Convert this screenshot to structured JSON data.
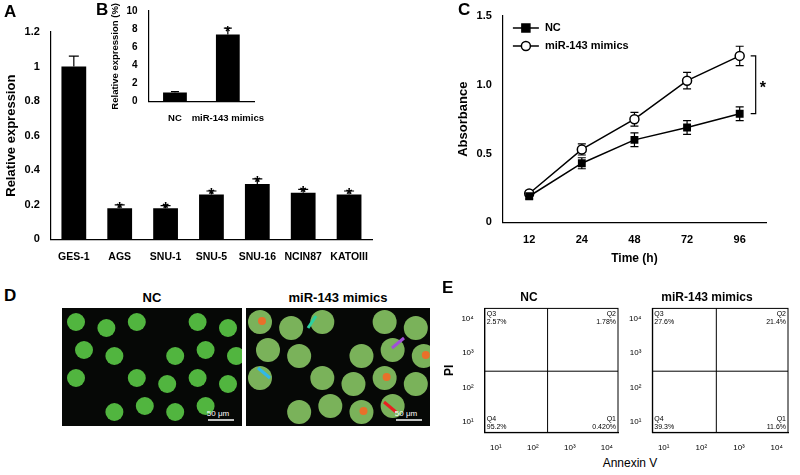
{
  "chart_data": [
    {
      "panel_label": "A",
      "type": "bar",
      "categories": [
        "GES-1",
        "AGS",
        "SNU-1",
        "SNU-5",
        "SNU-16",
        "NCIN87",
        "KATOIII"
      ],
      "values": [
        1.0,
        0.18,
        0.18,
        0.26,
        0.32,
        0.27,
        0.26
      ],
      "errors": [
        0.06,
        0.02,
        0.015,
        0.02,
        0.03,
        0.02,
        0.02
      ],
      "significance": [
        null,
        "*",
        "*",
        "*",
        "*",
        "*",
        "*"
      ],
      "y_label": "Relative expression",
      "ylim": [
        0,
        1.2
      ],
      "yticks": [
        0,
        0.2,
        0.4,
        0.6,
        0.8,
        1,
        1.2
      ],
      "color": "#000000",
      "grid": false
    },
    {
      "panel_label": "B",
      "type": "bar",
      "categories": [
        "NC",
        "miR-143 mimics"
      ],
      "values": [
        1,
        7.4
      ],
      "errors": [
        0.1,
        0.7
      ],
      "significance": [
        null,
        "*"
      ],
      "y_label": "Relative expression (%)",
      "ylim": [
        0,
        10
      ],
      "yticks": [
        0,
        2,
        4,
        6,
        8,
        10
      ],
      "color": "#000000",
      "grid": false
    },
    {
      "panel_label": "C",
      "type": "line",
      "categories": [
        "12",
        "24",
        "48",
        "72",
        "96"
      ],
      "x_label": "Time (h)",
      "y_label": "Absorbance",
      "ylim": [
        0,
        1.5
      ],
      "yticks": [
        0,
        0.5,
        {
          "value": 1,
          "label": "1.0"
        },
        1.5
      ],
      "series": [
        {
          "name": "NC",
          "color": "#000000",
          "marker": "square",
          "values": [
            0.19,
            0.43,
            0.6,
            0.69,
            0.79
          ],
          "errors": [
            0.02,
            0.04,
            0.05,
            0.05,
            0.05
          ]
        },
        {
          "name": "miR-143 mimics",
          "color": "#000000",
          "marker": "open_circle",
          "values": [
            0.21,
            0.53,
            0.75,
            1.03,
            1.21
          ],
          "errors": [
            0.02,
            0.04,
            0.05,
            0.06,
            0.07
          ]
        }
      ],
      "legend": "upper left",
      "significance": "*",
      "grid": false
    },
    {
      "panel_label": "E",
      "type": "scatter",
      "log": true,
      "x_label": "Annexin V",
      "y_label": "PI",
      "xlim": [
        5,
        20000
      ],
      "ylim": [
        5,
        20000
      ],
      "xticks": [
        {
          "value": 10,
          "label": "10¹"
        },
        {
          "value": 100,
          "label": "10²"
        },
        {
          "value": 1000,
          "label": "10³"
        },
        {
          "value": 10000,
          "label": "10⁴"
        }
      ],
      "yticks": [
        {
          "value": 10,
          "label": "10¹"
        },
        {
          "value": 100,
          "label": "10²"
        },
        {
          "value": 1000,
          "label": "10³"
        },
        {
          "value": 10000,
          "label": "10⁴"
        }
      ],
      "gates": {
        "x": 250,
        "y": 300
      },
      "grid": false,
      "plots": [
        {
          "title": "NC",
          "quadrants": [
            {
              "name": "Q1",
              "text": "0.420%"
            },
            {
              "name": "Q2",
              "text": "1.78%"
            },
            {
              "name": "Q3",
              "text": "2.57%"
            },
            {
              "name": "Q4",
              "text": "95.2%"
            }
          ]
        },
        {
          "title": "miR-143 mimics",
          "quadrants": [
            {
              "name": "Q1",
              "text": "11.6%"
            },
            {
              "name": "Q2",
              "text": "21.4%"
            },
            {
              "name": "Q3",
              "text": "27.6%"
            },
            {
              "name": "Q4",
              "text": "39.3%"
            }
          ]
        }
      ]
    }
  ],
  "micrographs": {
    "panel_label": "D",
    "images": [
      {
        "title": "NC",
        "scale_bar": "50 μm"
      },
      {
        "title": "miR-143 mimics",
        "scale_bar": "50 μm"
      }
    ]
  }
}
